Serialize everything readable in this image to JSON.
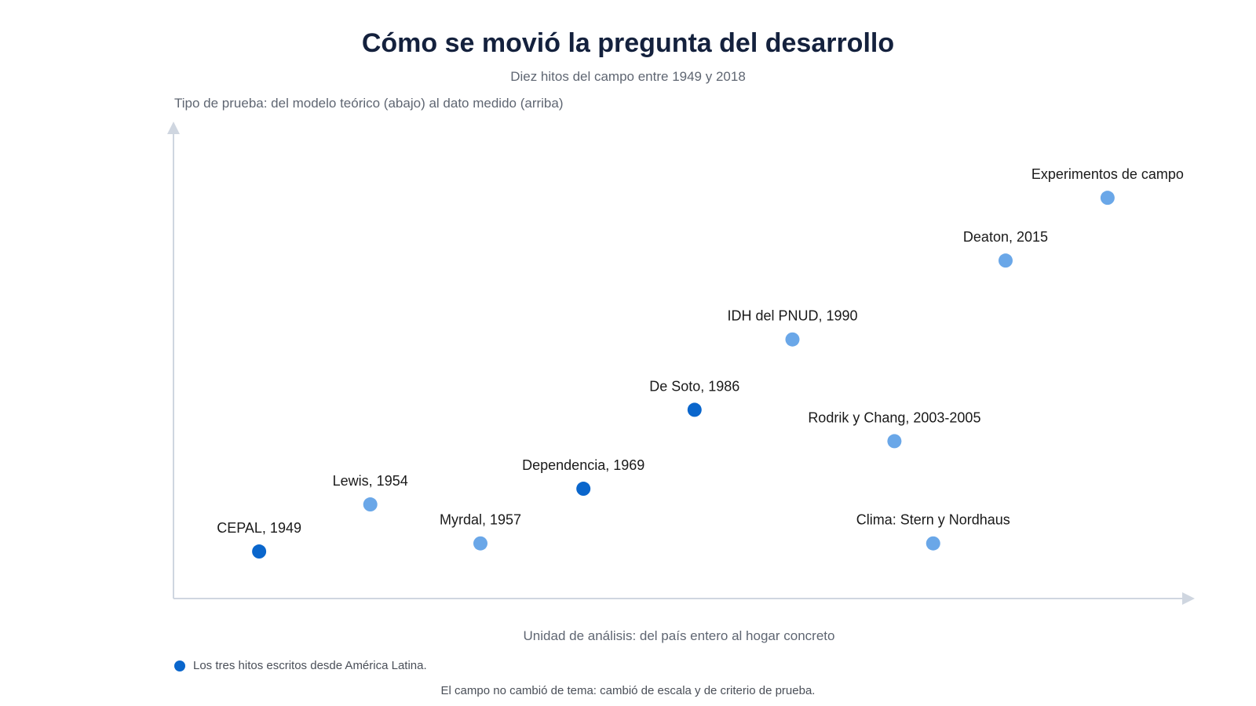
{
  "chart_data": {
    "type": "scatter",
    "title": "Cómo se movió la pregunta del desarrollo",
    "subtitle": "Diez hitos del campo entre 1949 y 2018",
    "xlabel": "Unidad de análisis: del país entero al hogar concreto",
    "ylabel": "Tipo de prueba: del modelo teórico (abajo) al dato medido (arriba)",
    "xlim": [
      0,
      100
    ],
    "ylim": [
      0,
      100
    ],
    "grid": false,
    "points": [
      {
        "label": "CEPAL, 1949",
        "x": 8.4,
        "y": 9.9,
        "latam": true
      },
      {
        "label": "Lewis, 1954",
        "x": 19.3,
        "y": 19.8,
        "latam": false
      },
      {
        "label": "Myrdal, 1957",
        "x": 30.1,
        "y": 11.6,
        "latam": false
      },
      {
        "label": "Dependencia, 1969",
        "x": 40.2,
        "y": 23.1,
        "latam": true
      },
      {
        "label": "De Soto, 1986",
        "x": 51.1,
        "y": 39.7,
        "latam": true
      },
      {
        "label": "IDH del PNUD, 1990",
        "x": 60.7,
        "y": 54.5,
        "latam": false
      },
      {
        "label": "Rodrik y Chang, 2003-2005",
        "x": 70.7,
        "y": 33.1,
        "latam": false
      },
      {
        "label": "Clima: Stern y Nordhaus",
        "x": 74.5,
        "y": 11.6,
        "latam": false
      },
      {
        "label": "Deaton, 2015",
        "x": 81.6,
        "y": 71.1,
        "latam": false
      },
      {
        "label": "Experimentos de campo",
        "x": 91.6,
        "y": 84.3,
        "latam": false
      }
    ],
    "legend": {
      "label": "Los tres hitos escritos desde América Latina.",
      "placement": "bottom-left"
    },
    "footnote": "El campo no cambió de tema: cambió de escala y de criterio de prueba.",
    "colors": {
      "latam": "#0a66cc",
      "other": "#6aa7e8",
      "axis": "#cfd6e0",
      "label": "#1a1a1a",
      "axis_label": "#5f6672"
    }
  }
}
